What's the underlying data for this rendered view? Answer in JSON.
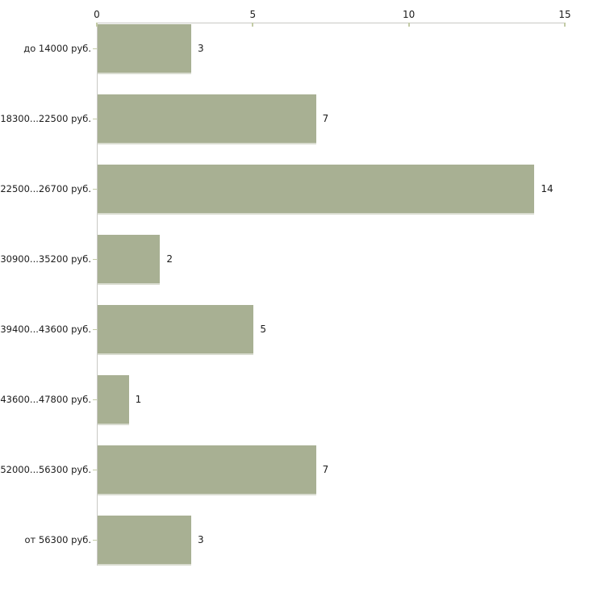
{
  "chart_data": {
    "type": "bar",
    "orientation": "horizontal",
    "title": "",
    "xlabel": "",
    "ylabel": "",
    "grid": false,
    "legend": false,
    "axis_position": "top",
    "categories": [
      "до 14000 руб.",
      "18300...22500 руб.",
      "22500...26700 руб.",
      "30900...35200 руб.",
      "39400...43600 руб.",
      "43600...47800 руб.",
      "52000...56300 руб.",
      "от 56300 руб."
    ],
    "values": [
      3,
      7,
      14,
      2,
      5,
      1,
      7,
      3
    ],
    "x_ticks": [
      0,
      5,
      10,
      15
    ],
    "xlim": [
      0,
      15
    ]
  },
  "colors": {
    "bar": "#a8b093",
    "bar_shadow": "#d9dcd0",
    "axis": "#c9c9c4",
    "tick_mark": "#c3cba6",
    "text": "#1c1c1c",
    "background": "#ffffff"
  }
}
